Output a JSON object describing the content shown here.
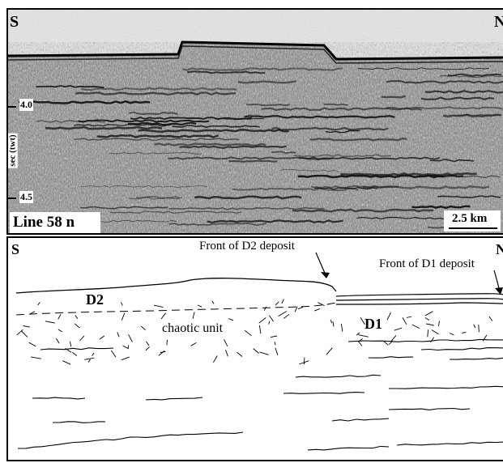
{
  "seismic": {
    "left_label": "S",
    "right_label": "N",
    "line_label": "Line 58 n",
    "scale_label": "2.5 km",
    "axis_title": "sec (twt)",
    "ticks": [
      "4.0",
      "4.5"
    ]
  },
  "interpretation": {
    "left_label": "S",
    "right_label": "N",
    "front_d2": "Front of D2 deposit",
    "front_d1": "Front of D1 deposit",
    "d2": "D2",
    "d1": "D1",
    "chaotic": "chaotic unit"
  },
  "colors": {
    "line": "#000000",
    "seismic_bg": "#d9d9d9"
  }
}
